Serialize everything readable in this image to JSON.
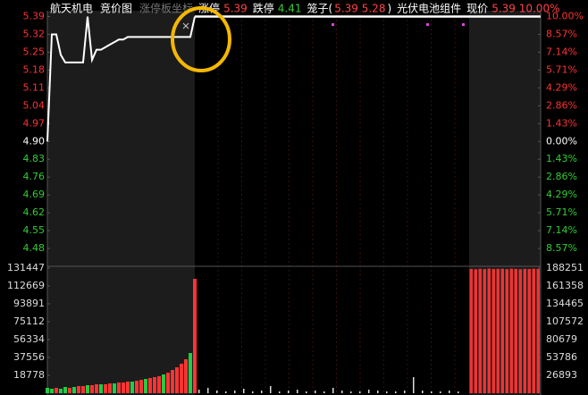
{
  "chart_data": {
    "type": "line",
    "header": [
      {
        "text": "航天机电",
        "color": "#ffffff"
      },
      {
        "text": "竞价图",
        "color": "#ffffff"
      },
      {
        "text": "涨停板坐标",
        "color": "#777777"
      },
      {
        "text": "涨停",
        "color": "#ffffff"
      },
      {
        "text": "5.39",
        "color": "#ff4444"
      },
      {
        "text": "跌停",
        "color": "#ffffff"
      },
      {
        "text": "4.41",
        "color": "#33cc33"
      },
      {
        "text": "笼子(",
        "color": "#ffffff"
      },
      {
        "text": "5.39 5.28",
        "color": "#ff4444"
      },
      {
        "text": ")",
        "color": "#ffffff"
      },
      {
        "text": "光伏电池组件",
        "color": "#ffffff"
      },
      {
        "text": "现价",
        "color": "#ffffff"
      },
      {
        "text": "5.39 10.00%",
        "color": "#ff4444"
      }
    ],
    "ylim": [
      4.41,
      5.42
    ],
    "yticks": [
      5.39,
      5.32,
      5.25,
      5.18,
      5.11,
      5.04,
      4.97,
      {
        "value": 4.9,
        "label": "4.90"
      },
      4.83,
      4.76,
      4.69,
      4.62,
      4.55,
      4.48
    ],
    "y2lim": [
      -10,
      10.61
    ],
    "y2ticks": [
      {
        "value": 10,
        "label": "10.00%"
      },
      {
        "value": 8.57,
        "label": "8.57%"
      },
      {
        "value": 7.14,
        "label": "7.14%"
      },
      {
        "value": 5.71,
        "label": "5.71%"
      },
      {
        "value": 4.29,
        "label": "4.29%"
      },
      {
        "value": 2.86,
        "label": "2.86%"
      },
      {
        "value": 1.43,
        "label": "1.43%"
      },
      {
        "value": 0,
        "label": "0.00%"
      },
      {
        "value": -1.43,
        "label": "1.43%"
      },
      {
        "value": -2.86,
        "label": "2.86%"
      },
      {
        "value": -4.29,
        "label": "4.29%"
      },
      {
        "value": -5.71,
        "label": "5.71%"
      },
      {
        "value": -7.14,
        "label": "7.14%"
      },
      {
        "value": -8.57,
        "label": "8.57%"
      }
    ],
    "auction_price": [
      4.9,
      5.32,
      5.32,
      5.24,
      5.21,
      5.21,
      5.21,
      5.21,
      5.21,
      5.39,
      5.22,
      5.26,
      5.26,
      5.27,
      5.28,
      5.29,
      5.3,
      5.3,
      5.31,
      5.31,
      5.31,
      5.31,
      5.31,
      5.31,
      5.31,
      5.31,
      5.31,
      5.31,
      5.31,
      5.31,
      5.31,
      5.31,
      5.31,
      5.39
    ],
    "session_price": [
      5.39,
      5.39
    ],
    "vlim": [
      0,
      131447
    ],
    "vticks": [
      131447,
      112669,
      93891,
      75112,
      56334,
      37556,
      18778
    ],
    "v2lim": [
      0,
      188251
    ],
    "v2ticks": [
      188251,
      161358,
      134465,
      107572,
      80679,
      53786,
      26893
    ],
    "auction_volume": [
      5634,
      4695,
      5634,
      4695,
      6573,
      5634,
      6573,
      7512,
      7512,
      8451,
      8451,
      9390,
      9390,
      9390,
      10329,
      10329,
      11268,
      11268,
      12207,
      12207,
      13146,
      14085,
      15024,
      15963,
      16902,
      17841,
      19719,
      21597,
      24414,
      27231,
      30987,
      35682,
      42255,
      120192
    ],
    "auction_volume_colors": [
      "#22cc44",
      "#22cc44",
      "#ff3333",
      "#22cc44",
      "#22cc44",
      "#ff3333",
      "#22cc44",
      "#ff3333",
      "#ff3333",
      "#22cc44",
      "#ff3333",
      "#ff3333",
      "#22cc44",
      "#ff3333",
      "#ff3333",
      "#22cc44",
      "#ff3333",
      "#ff3333",
      "#ff3333",
      "#22cc44",
      "#ff3333",
      "#ff3333",
      "#22cc44",
      "#ff3333",
      "#ff3333",
      "#ff3333",
      "#22cc44",
      "#ff3333",
      "#ff3333",
      "#ff3333",
      "#ff3333",
      "#ff3333",
      "#22cc44",
      "#ff3333"
    ],
    "session_volume": [
      3756,
      5634,
      2817,
      1878,
      2817,
      4695,
      1878,
      2817,
      7512,
      1878,
      2817,
      3756,
      1878,
      2817,
      1878,
      5634,
      2817,
      1878,
      1878,
      3756,
      2817,
      1878,
      1878,
      2817,
      16902,
      2817,
      1878,
      1878,
      2817,
      1878
    ],
    "post_volume": [
      187000,
      186500,
      187200,
      186800,
      187500,
      186900,
      187100,
      187300,
      186700,
      187400,
      187000,
      186600,
      187200,
      186900,
      187300,
      187000
    ]
  }
}
